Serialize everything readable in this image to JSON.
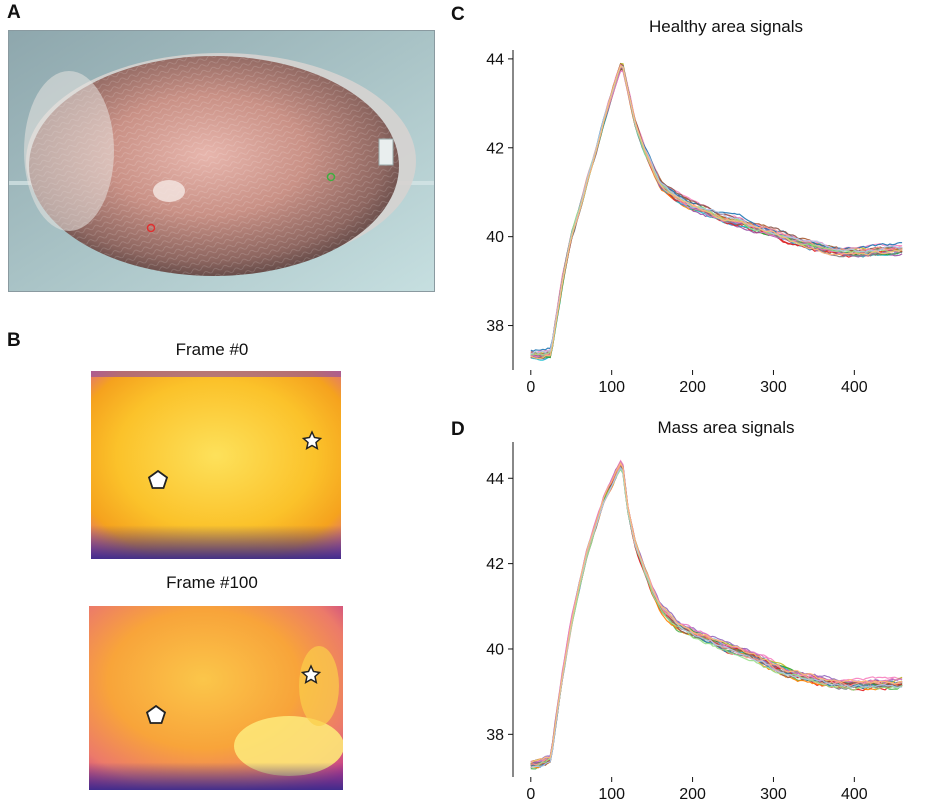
{
  "panel_labels": {
    "a": "A",
    "b": "B",
    "c": "C",
    "d": "D"
  },
  "panel_b": {
    "frame0_title": "Frame #0",
    "frame100_title": "Frame #100",
    "markers": [
      "pentagon",
      "star"
    ]
  },
  "colors": {
    "healthy_marker": "#3fae3f",
    "mass_marker": "#e03030",
    "thermal_hot": "#fff06a",
    "thermal_warm": "#f9b21a",
    "thermal_cool": "#c23a8c",
    "thermal_cold": "#3a2a8c"
  },
  "chart_data": [
    {
      "type": "line",
      "title": "Healthy area signals",
      "xlabel": "",
      "ylabel": "",
      "xlim": [
        -22,
        475
      ],
      "ylim": [
        37,
        44.2
      ],
      "xticks": [
        0,
        100,
        200,
        300,
        400
      ],
      "yticks": [
        38,
        40,
        42,
        44
      ],
      "n_series": 20,
      "palette": [
        "#e41a1c",
        "#4daf4a",
        "#377eb8",
        "#ff7f00",
        "#984ea3",
        "#a65628",
        "#f781bf",
        "#17becf",
        "#bcbd22",
        "#1f77b4",
        "#2ca02c",
        "#d62728",
        "#9467bd",
        "#8c564b",
        "#e377c2",
        "#7f7f7f",
        "#ff9896",
        "#98df8a",
        "#aec7e8",
        "#ffbb78"
      ],
      "mean_curve": {
        "x": [
          0,
          10,
          20,
          25,
          30,
          40,
          50,
          60,
          70,
          80,
          90,
          100,
          110,
          113,
          120,
          130,
          140,
          150,
          160,
          180,
          200,
          220,
          240,
          260,
          280,
          300,
          320,
          340,
          360,
          380,
          400,
          420,
          440,
          460
        ],
        "y": [
          37.35,
          37.35,
          37.38,
          37.4,
          38.0,
          39.1,
          40.0,
          40.6,
          41.3,
          41.9,
          42.6,
          43.2,
          43.8,
          43.9,
          43.3,
          42.5,
          42.0,
          41.6,
          41.2,
          40.9,
          40.7,
          40.55,
          40.4,
          40.35,
          40.2,
          40.1,
          39.95,
          39.85,
          39.75,
          39.68,
          39.65,
          39.68,
          39.7,
          39.72
        ]
      },
      "spread": 0.1
    },
    {
      "type": "line",
      "title": "Mass area signals",
      "xlabel": "",
      "ylabel": "",
      "xlim": [
        -22,
        475
      ],
      "ylim": [
        37,
        44.85
      ],
      "xticks": [
        0,
        100,
        200,
        300,
        400
      ],
      "yticks": [
        38,
        40,
        42,
        44
      ],
      "n_series": 20,
      "palette": [
        "#e41a1c",
        "#4daf4a",
        "#377eb8",
        "#ff7f00",
        "#984ea3",
        "#a65628",
        "#f781bf",
        "#17becf",
        "#bcbd22",
        "#1f77b4",
        "#2ca02c",
        "#d62728",
        "#9467bd",
        "#8c564b",
        "#e377c2",
        "#7f7f7f",
        "#ff9896",
        "#98df8a",
        "#aec7e8",
        "#ffbb78"
      ],
      "mean_curve": {
        "x": [
          0,
          10,
          20,
          25,
          30,
          40,
          50,
          60,
          70,
          80,
          90,
          100,
          110,
          113,
          120,
          130,
          140,
          150,
          160,
          180,
          200,
          220,
          240,
          260,
          280,
          300,
          320,
          340,
          360,
          380,
          400,
          420,
          440,
          460
        ],
        "y": [
          37.3,
          37.35,
          37.4,
          37.45,
          38.2,
          39.5,
          40.6,
          41.5,
          42.3,
          42.9,
          43.5,
          43.9,
          44.3,
          44.4,
          43.3,
          42.4,
          41.9,
          41.4,
          41.0,
          40.6,
          40.4,
          40.25,
          40.05,
          39.95,
          39.8,
          39.6,
          39.45,
          39.35,
          39.25,
          39.2,
          39.18,
          39.2,
          39.2,
          39.22
        ]
      },
      "spread": 0.12
    }
  ]
}
